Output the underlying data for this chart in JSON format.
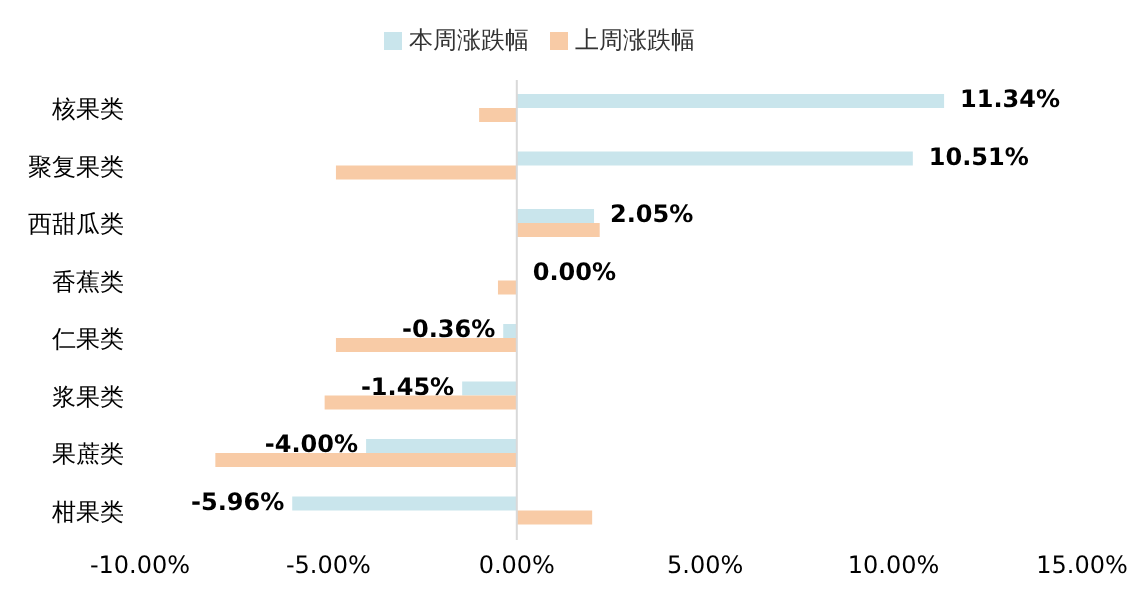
{
  "chart_data": {
    "type": "bar",
    "orientation": "horizontal",
    "categories": [
      "核果类",
      "聚复果类",
      "西甜瓜类",
      "香蕉类",
      "仁果类",
      "浆果类",
      "果蔗类",
      "柑果类"
    ],
    "series": [
      {
        "name": "本周涨跌幅",
        "color": "#c9e5ec",
        "values": [
          11.34,
          10.51,
          2.05,
          0.0,
          -0.36,
          -1.45,
          -4.0,
          -5.96
        ],
        "value_labels": [
          "11.34%",
          "10.51%",
          "2.05%",
          "0.00%",
          "-0.36%",
          "-1.45%",
          "-4.00%",
          "-5.96%"
        ]
      },
      {
        "name": "上周涨跌幅",
        "color": "#f8cba6",
        "values": [
          -1.0,
          -4.8,
          2.2,
          -0.5,
          -4.8,
          -5.1,
          -8.0,
          2.0
        ]
      }
    ],
    "xlim": [
      -10,
      15
    ],
    "xticks": [
      {
        "value": -10,
        "label": "-10.00%"
      },
      {
        "value": -5,
        "label": "-5.00%"
      },
      {
        "value": 0,
        "label": "0.00%"
      },
      {
        "value": 5,
        "label": "5.00%"
      },
      {
        "value": 10,
        "label": "10.00%"
      },
      {
        "value": 15,
        "label": "15.00%"
      }
    ],
    "ref_lines": [
      {
        "axis": "x",
        "value": 0,
        "color": "#d9d9d9"
      }
    ],
    "legend": "top"
  }
}
